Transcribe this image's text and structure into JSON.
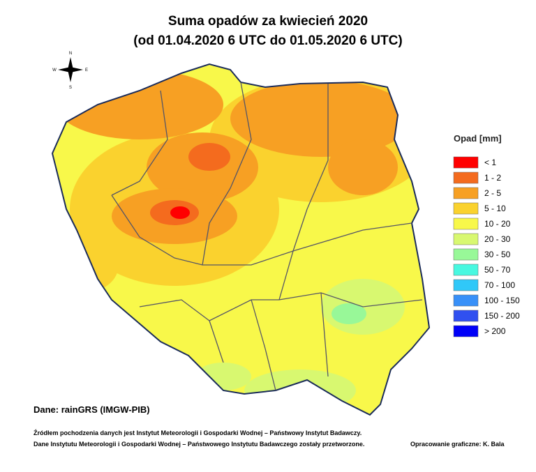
{
  "header": {
    "title_line1": "Suma opadów za kwiecień 2020",
    "title_line2": "(od 01.04.2020 6 UTC do 01.05.2020 6 UTC)"
  },
  "compass": {
    "n": "N",
    "e": "E",
    "s": "S",
    "w": "W"
  },
  "legend": {
    "title": "Opad [mm]",
    "items": [
      {
        "label": "< 1",
        "color": "#ff0000"
      },
      {
        "label": "1 - 2",
        "color": "#f46b1e"
      },
      {
        "label": "2 - 5",
        "color": "#f7a023"
      },
      {
        "label": "5 - 10",
        "color": "#fad22e"
      },
      {
        "label": "10 - 20",
        "color": "#f8f84a"
      },
      {
        "label": "20 - 30",
        "color": "#d8f870"
      },
      {
        "label": "30 - 50",
        "color": "#98f898"
      },
      {
        "label": "50 - 70",
        "color": "#48f8e0"
      },
      {
        "label": "70 - 100",
        "color": "#30c8f8"
      },
      {
        "label": "100 - 150",
        "color": "#3890f8"
      },
      {
        "label": "150 - 200",
        "color": "#3050f0"
      },
      {
        "label": "> 200",
        "color": "#0000f8"
      }
    ]
  },
  "source": "Dane: rainGRS (IMGW-PIB)",
  "footnote": {
    "line1": "Źródłem pochodzenia danych jest Instytut Meteorologii i Gospodarki Wodnej – Państwowy Instytut Badawczy.",
    "line2": "Dane Instytutu Meteorologii i Gospodarki Wodnej – Państwowego Instytutu Badawczego zostały przetworzone."
  },
  "credit": "Opracowanie graficzne: K. Bala"
}
